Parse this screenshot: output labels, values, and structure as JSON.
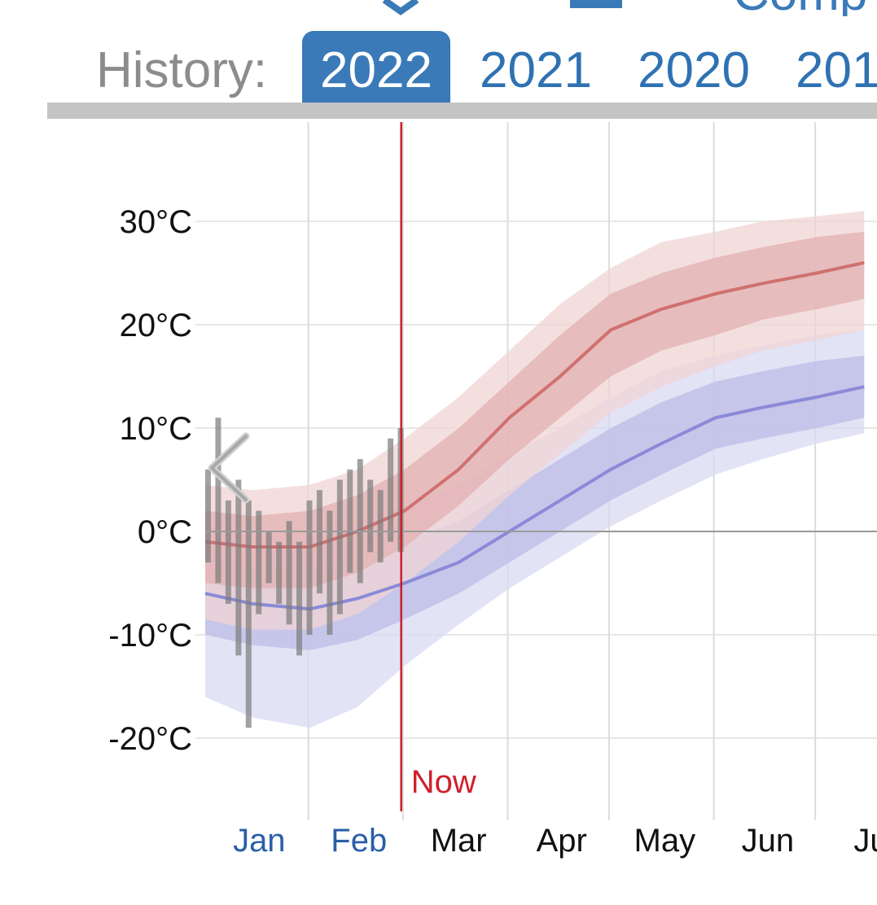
{
  "tabs": {
    "history_label": "History:",
    "years": [
      "2022",
      "2021",
      "2020",
      "201"
    ],
    "active_index": 0,
    "top_text": "Comp"
  },
  "chart_data": {
    "type": "area",
    "title": "",
    "xlabel": "",
    "ylabel": "",
    "ylim": [
      -27,
      40
    ],
    "yticks": [
      30,
      20,
      10,
      0,
      -10,
      -20
    ],
    "ytick_labels": [
      "30°C",
      "20°C",
      "10°C",
      "0°C",
      "-10°C",
      "-20°C"
    ],
    "months": [
      "Jan",
      "Feb",
      "Mar",
      "Apr",
      "May",
      "Jun",
      "Ju"
    ],
    "past_months": [
      "Jan",
      "Feb"
    ],
    "now_day": 58,
    "now_label": "Now",
    "grid": true,
    "colors": {
      "high": "#d07070",
      "high_band_inner": "#e3b0b0",
      "high_band_outer": "#f0d4d4",
      "low": "#8a8ad8",
      "low_band_inner": "#bcbce6",
      "low_band_outer": "#dadaf3",
      "observed": "#7a7a7a",
      "now": "#cc1f2a",
      "past_month": "#2a5ea8",
      "month": "#111111"
    },
    "series": [
      {
        "kind": "mean_high",
        "x": [
          0,
          14,
          31,
          45,
          59,
          75,
          90,
          105,
          120,
          135,
          151,
          165,
          181,
          195
        ],
        "values": [
          -1,
          -1.5,
          -1.5,
          0,
          2,
          6,
          11,
          15,
          19.5,
          21.5,
          23,
          24,
          25,
          26
        ],
        "p25": [
          -5,
          -5.5,
          -5.5,
          -4,
          -1.5,
          2.5,
          7,
          11,
          15,
          17.5,
          19,
          20.5,
          21.5,
          22.5
        ],
        "p75": [
          2,
          1.5,
          2,
          3.5,
          6,
          10,
          14.5,
          19,
          23,
          25,
          26.5,
          27.5,
          28.5,
          29
        ],
        "p10": [
          -8.5,
          -9.5,
          -9.5,
          -8,
          -5,
          -1,
          3.5,
          7.5,
          11.5,
          14,
          16,
          17.5,
          18.5,
          19.5
        ],
        "p90": [
          4.5,
          4,
          4.5,
          6,
          9,
          13,
          17.5,
          22,
          25.5,
          28,
          29,
          30,
          30.5,
          31
        ]
      },
      {
        "kind": "mean_low",
        "x": [
          0,
          14,
          31,
          45,
          59,
          75,
          90,
          105,
          120,
          135,
          151,
          165,
          181,
          195
        ],
        "values": [
          -6,
          -7,
          -7.5,
          -6.5,
          -5,
          -3,
          0,
          3,
          6,
          8.5,
          11,
          12,
          13,
          14
        ],
        "p25": [
          -10,
          -11,
          -11.5,
          -10.5,
          -8.5,
          -6,
          -3,
          0,
          3,
          5.5,
          8,
          9,
          10,
          11
        ],
        "p75": [
          -2.5,
          -3.5,
          -3.5,
          -2.5,
          -1,
          1,
          4,
          7,
          10,
          12.5,
          14.5,
          15.5,
          16.5,
          17
        ],
        "p10": [
          -16,
          -18,
          -19,
          -17,
          -13,
          -9,
          -5.5,
          -2.5,
          0.5,
          3,
          5.5,
          7,
          8.5,
          9.5
        ],
        "p90": [
          0.5,
          -0.5,
          0,
          1,
          2.5,
          4.5,
          7.5,
          10,
          13,
          15.5,
          17,
          18,
          19,
          19.5
        ]
      }
    ],
    "observed": {
      "x": [
        0,
        3,
        6,
        9,
        12,
        15,
        18,
        21,
        24,
        27,
        30,
        33,
        36,
        39,
        42,
        45,
        48,
        51,
        54,
        57
      ],
      "high": [
        6,
        11,
        3,
        5,
        3,
        2,
        0,
        -1,
        1,
        -1,
        3,
        4,
        2,
        5,
        6,
        7,
        5,
        4,
        9,
        10
      ],
      "low": [
        -3,
        -5,
        -7,
        -12,
        -19,
        -8,
        -5,
        -7,
        -9,
        -12,
        -10,
        -6,
        -10,
        -8,
        -4,
        -5,
        -2,
        -3,
        -1,
        -2
      ]
    }
  }
}
